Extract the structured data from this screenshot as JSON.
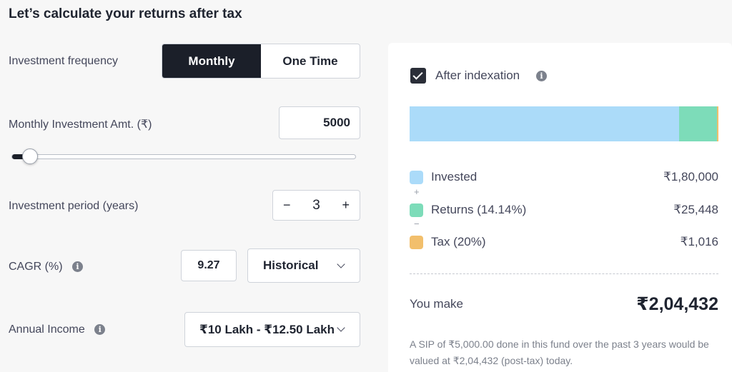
{
  "title": "Let’s calculate your returns after tax",
  "frequency": {
    "label": "Investment frequency",
    "options": [
      "Monthly",
      "One Time"
    ],
    "selected": "Monthly"
  },
  "amount": {
    "label": "Monthly Investment Amt. (₹)",
    "value": "5000",
    "slider_fraction": 0.05
  },
  "period": {
    "label": "Investment period (years)",
    "minus": "−",
    "value": "3",
    "plus": "+"
  },
  "cagr": {
    "label": "CAGR (%)",
    "value": "9.27",
    "mode": "Historical"
  },
  "income": {
    "label": "Annual Income",
    "value": "₹10 Lakh - ₹12.50 Lakh"
  },
  "summary": {
    "indexation_label": "After indexation",
    "indexation_checked": true,
    "bar": {
      "invested": 180000,
      "returns": 25448,
      "tax": 1016
    },
    "legend": [
      {
        "name": "Invested",
        "value": "₹1,80,000",
        "color": "#abdbf9"
      },
      {
        "name": "Returns (14.14%)",
        "value": "₹25,448",
        "color": "#7ddcb9"
      },
      {
        "name": "Tax (20%)",
        "value": "₹1,016",
        "color": "#f2bf6c"
      }
    ],
    "plus_sign": "+",
    "minus_sign": "−",
    "you_make_label": "You make",
    "you_make_value": "₹2,04,432",
    "note": "A SIP of ₹5,000.00 done in this fund over the past 3 years would be valued at ₹2,04,432 (post-tax) today."
  },
  "info_glyph": "i"
}
